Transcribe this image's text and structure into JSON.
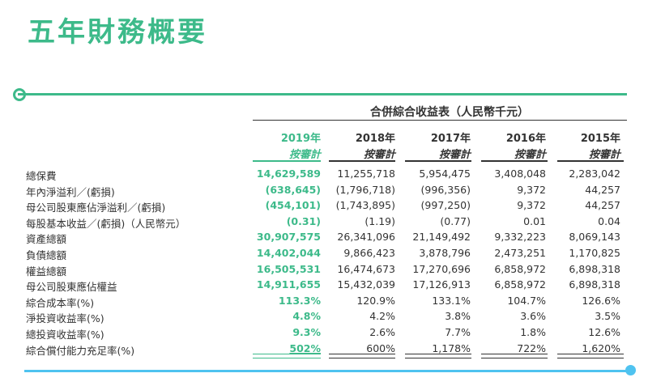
{
  "title": "五年財務概要",
  "table_heading": "合併綜合收益表（人民幣千元）",
  "columns": [
    {
      "year": "2019年",
      "note": "按審計"
    },
    {
      "year": "2018年",
      "note": "按審計"
    },
    {
      "year": "2017年",
      "note": "按審計"
    },
    {
      "year": "2016年",
      "note": "按審計"
    },
    {
      "year": "2015年",
      "note": "按審計"
    }
  ],
  "rows": [
    {
      "label": "總保費",
      "values": [
        "14,629,589",
        "11,255,718",
        "5,954,475",
        "3,408,048",
        "2,283,042"
      ]
    },
    {
      "label": "年內淨溢利／(虧損)",
      "values": [
        "(638,645)",
        "(1,796,718)",
        "(996,356)",
        "9,372",
        "44,257"
      ]
    },
    {
      "label": "母公司股東應佔淨溢利／(虧損)",
      "values": [
        "(454,101)",
        "(1,743,895)",
        "(997,250)",
        "9,372",
        "44,257"
      ]
    },
    {
      "label": "每股基本收益／(虧損)（人民幣元）",
      "values": [
        "(0.31)",
        "(1.19)",
        "(0.77)",
        "0.01",
        "0.04"
      ]
    },
    {
      "label": "資產總額",
      "values": [
        "30,907,575",
        "26,341,096",
        "21,149,492",
        "9,332,223",
        "8,069,143"
      ]
    },
    {
      "label": "負債總額",
      "values": [
        "14,402,044",
        "9,866,423",
        "3,878,796",
        "2,473,251",
        "1,170,825"
      ]
    },
    {
      "label": "權益總額",
      "values": [
        "16,505,531",
        "16,474,673",
        "17,270,696",
        "6,858,972",
        "6,898,318"
      ]
    },
    {
      "label": "母公司股東應佔權益",
      "values": [
        "14,911,655",
        "15,432,039",
        "17,126,913",
        "6,858,972",
        "6,898,318"
      ]
    },
    {
      "label": "綜合成本率(%)",
      "values": [
        "113.3%",
        "120.9%",
        "133.1%",
        "104.7%",
        "126.6%"
      ]
    },
    {
      "label": "淨投資收益率(%)",
      "values": [
        "4.8%",
        "4.2%",
        "3.8%",
        "3.6%",
        "3.5%"
      ]
    },
    {
      "label": "總投資收益率(%)",
      "values": [
        "9.3%",
        "2.6%",
        "7.7%",
        "1.8%",
        "12.6%"
      ]
    },
    {
      "label": "綜合償付能力充足率(%)",
      "values": [
        "502%",
        "600%",
        "1,178%",
        "722%",
        "1,620%"
      ]
    }
  ],
  "colors": {
    "accent_green": "#3dba8a",
    "accent_blue": "#4fc3f0"
  }
}
